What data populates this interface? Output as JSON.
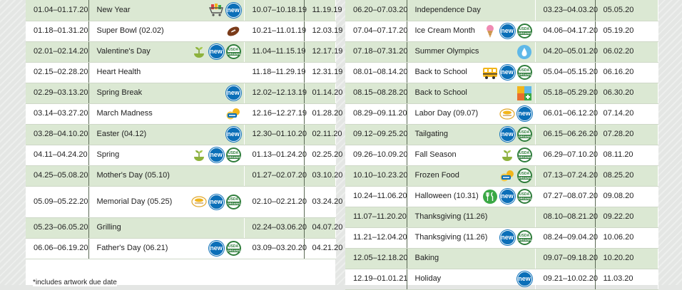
{
  "left_rows": [
    {
      "prom": "01.04–01.17.20",
      "theme": "New Year",
      "icons": [
        "cart-icon",
        "new"
      ],
      "artwork": "10.07–10.18.19",
      "due": "11.19.19",
      "height": 29,
      "shade": true
    },
    {
      "prom": "01.18–01.31.20",
      "theme": "Super Bowl (02.02)",
      "icons": [
        "football-icon"
      ],
      "artwork": "10.21–11.01.19",
      "due": "12.03.19",
      "height": 29,
      "shade": false
    },
    {
      "prom": "02.01–02.14.20",
      "theme": "Valentine's Day",
      "icons": [
        "sprout-icon",
        "new",
        "usda"
      ],
      "artwork": "11.04–11.15.19",
      "due": "12.17.19",
      "height": 29,
      "shade": true
    },
    {
      "prom": "02.15–02.28.20",
      "theme": "Heart Health",
      "icons": [],
      "artwork": "11.18–11.29.19",
      "due": "12.31.19",
      "height": 29,
      "shade": false
    },
    {
      "prom": "02.29–03.13.20",
      "theme": "Spring Break",
      "icons": [
        "new"
      ],
      "artwork": "12.02–12.13.19",
      "due": "01.14.20",
      "height": 29,
      "shade": true
    },
    {
      "prom": "03.14–03.27.20",
      "theme": "March Madness",
      "icons": [
        "cookie-logo-icon"
      ],
      "artwork": "12.16–12.27.19",
      "due": "01.28.20",
      "height": 29,
      "shade": false
    },
    {
      "prom": "03.28–04.10.20",
      "theme": "Easter (04.12)",
      "icons": [
        "new"
      ],
      "artwork": "12.30–01.10.20",
      "due": "02.11.20",
      "height": 29,
      "shade": true
    },
    {
      "prom": "04.11–04.24.20",
      "theme": "Spring",
      "icons": [
        "sprout-icon",
        "new",
        "usda"
      ],
      "artwork": "01.13–01.24.20",
      "due": "02.25.20",
      "height": 29,
      "shade": false
    },
    {
      "prom": "04.25–05.08.20",
      "theme": "Mother's Day (05.10)",
      "icons": [],
      "artwork": "01.27–02.07.20",
      "due": "03.10.20",
      "height": 29,
      "shade": true
    },
    {
      "prom": "05.09–05.22.20",
      "theme": "Memorial Day (05.25)",
      "icons": [
        "oval-logo-icon",
        "new",
        "usda"
      ],
      "artwork": "02.10–02.21.20",
      "due": "03.24.20",
      "height": 44,
      "shade": false
    },
    {
      "prom": "05.23–06.05.20",
      "theme": "Grilling",
      "icons": [],
      "artwork": "02.24–03.06.20",
      "due": "04.07.20",
      "height": 29,
      "shade": true
    },
    {
      "prom": "06.06–06.19.20",
      "theme": "Father's Day (06.21)",
      "icons": [
        "new",
        "usda"
      ],
      "artwork": "03.09–03.20.20",
      "due": "04.21.20",
      "height": 29,
      "shade": false
    }
  ],
  "right_rows": [
    {
      "prom": "06.20–07.03.20",
      "theme": "Independence Day",
      "icons": [],
      "artwork": "03.23–04.03.20",
      "due": "05.05.20",
      "height": 29,
      "shade": true
    },
    {
      "prom": "07.04–07.17.20",
      "theme": "Ice Cream Month",
      "icons": [
        "ice-cream-icon",
        "new",
        "usda"
      ],
      "artwork": "04.06–04.17.20",
      "due": "05.19.20",
      "height": 29,
      "shade": false
    },
    {
      "prom": "07.18–07.31.20",
      "theme": "Summer Olympics",
      "icons": [
        "water-drop-icon"
      ],
      "artwork": "04.20–05.01.20",
      "due": "06.02.20",
      "height": 29,
      "shade": true
    },
    {
      "prom": "08.01–08.14.20",
      "theme": "Back to School",
      "icons": [
        "school-bus-icon",
        "new",
        "usda"
      ],
      "artwork": "05.04–05.15.20",
      "due": "06.16.20",
      "height": 29,
      "shade": false
    },
    {
      "prom": "08.15–08.28.20",
      "theme": "Back to School",
      "icons": [
        "colorful-blocks-icon"
      ],
      "artwork": "05.18–05.29.20",
      "due": "06.30.20",
      "height": 29,
      "shade": true
    },
    {
      "prom": "08.29–09.11.20",
      "theme": "Labor Day (09.07)",
      "icons": [
        "oval-logo-icon",
        "new"
      ],
      "artwork": "06.01–06.12.20",
      "due": "07.14.20",
      "height": 29,
      "shade": false
    },
    {
      "prom": "09.12–09.25.20",
      "theme": "Tailgating",
      "icons": [
        "new",
        "usda"
      ],
      "artwork": "06.15–06.26.20",
      "due": "07.28.20",
      "height": 29,
      "shade": true
    },
    {
      "prom": "09.26–10.09.20",
      "theme": "Fall Season",
      "icons": [
        "sprout-icon",
        "usda"
      ],
      "artwork": "06.29–07.10.20",
      "due": "08.11.20",
      "height": 29,
      "shade": false
    },
    {
      "prom": "10.10–10.23.20",
      "theme": "Frozen Food",
      "icons": [
        "cookie-logo-icon",
        "usda"
      ],
      "artwork": "07.13–07.24.20",
      "due": "08.25.20",
      "height": 29,
      "shade": true
    },
    {
      "prom": "10.24–11.06.20",
      "theme": "Halloween (10.31)",
      "icons": [
        "utensils-icon",
        "new",
        "usda"
      ],
      "artwork": "07.27–08.07.20",
      "due": "09.08.20",
      "height": 29,
      "shade": false
    },
    {
      "prom": "11.07–11.20.20",
      "theme": "Thanksgiving (11.26)",
      "icons": [],
      "artwork": "08.10–08.21.20",
      "due": "09.22.20",
      "height": 29,
      "shade": true
    },
    {
      "prom": "11.21–12.04.20",
      "theme": "Thanksgiving (11.26)",
      "icons": [
        "new",
        "usda"
      ],
      "artwork": "08.24–09.04.20",
      "due": "10.06.20",
      "height": 29,
      "shade": false
    },
    {
      "prom": "12.05–12.18.20",
      "theme": "Baking",
      "icons": [],
      "artwork": "09.07–09.18.20",
      "due": "10.20.20",
      "height": 29,
      "shade": true
    },
    {
      "prom": "12.19–01.01.21",
      "theme": "Holiday",
      "icons": [
        "new"
      ],
      "artwork": "09.21–10.02.20",
      "due": "11.03.20",
      "height": 29,
      "shade": false
    }
  ],
  "badges": {
    "new_label": "new",
    "usda_top": "USDA",
    "usda_bottom": "ORGANIC"
  },
  "footnote": "*includes artwork due date",
  "colors": {
    "row_shade": "#dbe8d3",
    "new_badge": "#0b6fb8",
    "usda_green": "#2f7d3b"
  }
}
